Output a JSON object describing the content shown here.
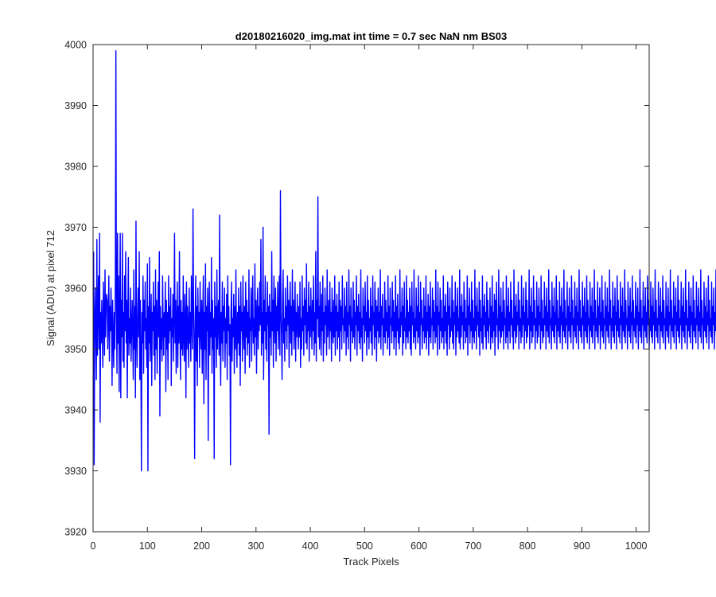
{
  "chart_data": {
    "type": "line",
    "title": "d20180216020_img.mat int time = 0.7 sec  NaN nm BS03",
    "xlabel": "Track Pixels",
    "ylabel": "Signal (ADU) at pixel 712",
    "xlim": [
      0,
      1024
    ],
    "ylim": [
      3920,
      4000
    ],
    "xticks": [
      0,
      100,
      200,
      300,
      400,
      500,
      600,
      700,
      800,
      900,
      1000
    ],
    "yticks": [
      3920,
      3930,
      3940,
      3950,
      3960,
      3970,
      3980,
      3990,
      4000
    ],
    "grid": false,
    "box": true,
    "series": [
      {
        "color": "#0000ff",
        "x_start": 1,
        "x_step": 1,
        "y": [
          3966,
          3931,
          3954,
          3960,
          3952,
          3945,
          3968,
          3949,
          3957,
          3962,
          3950,
          3969,
          3938,
          3956,
          3951,
          3958,
          3953,
          3947,
          3961,
          3955,
          3949,
          3963,
          3952,
          3957,
          3959,
          3958,
          3950,
          3955,
          3962,
          3948,
          3957,
          3953,
          3960,
          3954,
          3944,
          3958,
          3952,
          3947,
          3956,
          3950,
          3961,
          3999,
          3956,
          3946,
          3969,
          3951,
          3962,
          3943,
          3955,
          3969,
          3942,
          3958,
          3952,
          3969,
          3948,
          3956,
          3947,
          3962,
          3953,
          3966,
          3951,
          3958,
          3942,
          3956,
          3965,
          3949,
          3955,
          3951,
          3960,
          3948,
          3953,
          3958,
          3952,
          3945,
          3963,
          3950,
          3957,
          3942,
          3971,
          3953,
          3947,
          3955,
          3960,
          3952,
          3966,
          3945,
          3958,
          3949,
          3930,
          3956,
          3951,
          3962,
          3946,
          3958,
          3953,
          3961,
          3950,
          3955,
          3947,
          3964,
          3930,
          3957,
          3951,
          3965,
          3948,
          3952,
          3959,
          3944,
          3956,
          3953,
          3961,
          3949,
          3957,
          3945,
          3963,
          3950,
          3958,
          3946,
          3954,
          3961,
          3952,
          3966,
          3939,
          3957,
          3950,
          3955,
          3948,
          3962,
          3954,
          3949,
          3956,
          3952,
          3961,
          3943,
          3958,
          3950,
          3956,
          3945,
          3962,
          3951,
          3957,
          3953,
          3960,
          3944,
          3955,
          3952,
          3959,
          3948,
          3956,
          3969,
          3951,
          3958,
          3946,
          3954,
          3961,
          3947,
          3957,
          3951,
          3966,
          3953,
          3945,
          3958,
          3950,
          3956,
          3949,
          3962,
          3952,
          3948,
          3959,
          3955,
          3942,
          3961,
          3950,
          3957,
          3953,
          3947,
          3960,
          3951,
          3956,
          3948,
          3962,
          3954,
          3950,
          3973,
          3957,
          3951,
          3932,
          3955,
          3962,
          3948,
          3957,
          3944,
          3960,
          3952,
          3956,
          3947,
          3961,
          3953,
          3950,
          3958,
          3946,
          3955,
          3962,
          3941,
          3956,
          3950,
          3964,
          3945,
          3957,
          3953,
          3960,
          3935,
          3954,
          3961,
          3949,
          3956,
          3952,
          3965,
          3946,
          3958,
          3950,
          3955,
          3932,
          3961,
          3952,
          3957,
          3947,
          3963,
          3950,
          3955,
          3958,
          3949,
          3972,
          3953,
          3944,
          3956,
          3951,
          3961,
          3948,
          3957,
          3953,
          3960,
          3947,
          3955,
          3951,
          3959,
          3945,
          3962,
          3953,
          3957,
          3949,
          3954,
          3931,
          3956,
          3961,
          3948,
          3955,
          3952,
          3959,
          3946,
          3957,
          3950,
          3963,
          3952,
          3947,
          3956,
          3951,
          3960,
          3949,
          3957,
          3944,
          3961,
          3953,
          3956,
          3948,
          3962,
          3954,
          3950,
          3957,
          3946,
          3961,
          3952,
          3958,
          3949,
          3956,
          3951,
          3963,
          3947,
          3955,
          3953,
          3960,
          3948,
          3957,
          3962,
          3951,
          3955,
          3949,
          3964,
          3952,
          3958,
          3946,
          3956,
          3960,
          3950,
          3957,
          3953,
          3961,
          3954,
          3968,
          3949,
          3956,
          3951,
          3970,
          3945,
          3958,
          3953,
          3962,
          3950,
          3956,
          3948,
          3961,
          3954,
          3957,
          3936,
          3959,
          3952,
          3956,
          3949,
          3966,
          3953,
          3958,
          3947,
          3962,
          3955,
          3951,
          3960,
          3948,
          3957,
          3953,
          3961,
          3950,
          3955,
          3962,
          3949,
          3976,
          3956,
          3952,
          3945,
          3958,
          3963,
          3951,
          3955,
          3948,
          3960,
          3953,
          3957,
          3950,
          3962,
          3954,
          3958,
          3947,
          3956,
          3961,
          3951,
          3957,
          3949,
          3963,
          3953,
          3958,
          3950,
          3955,
          3961,
          3948,
          3956,
          3952,
          3959,
          3954,
          3950,
          3957,
          3952,
          3961,
          3947,
          3955,
          3950,
          3962,
          3953,
          3957,
          3949,
          3960,
          3954,
          3958,
          3951,
          3964,
          3950,
          3956,
          3953,
          3961,
          3948,
          3957,
          3952,
          3960,
          3955,
          3950,
          3958,
          3953,
          3962,
          3949,
          3956,
          3951,
          3966,
          3948,
          3958,
          3955,
          3975,
          3952,
          3957,
          3950,
          3961,
          3954,
          3949,
          3959,
          3953,
          3962,
          3948,
          3956,
          3951,
          3960,
          3954,
          3957,
          3949,
          3963,
          3952,
          3955,
          3958,
          3950,
          3961,
          3953,
          3956,
          3948,
          3960,
          3954,
          3951,
          3958,
          3952,
          3962,
          3949,
          3957,
          3953,
          3959,
          3950,
          3956,
          3952,
          3961,
          3948,
          3958,
          3953,
          3957,
          3950,
          3962,
          3954,
          3955,
          3951,
          3960,
          3953,
          3957,
          3949,
          3961,
          3952,
          3956,
          3950,
          3963,
          3954,
          3957,
          3948,
          3960,
          3953,
          3955,
          3951,
          3961,
          3952,
          3958,
          3950,
          3956,
          3954,
          3962,
          3949,
          3957,
          3953,
          3959,
          3951,
          3956,
          3950,
          3963,
          3952,
          3955,
          3948,
          3960,
          3954,
          3957,
          3951,
          3961,
          3953,
          3956,
          3949,
          3962,
          3952,
          3958,
          3950,
          3955,
          3953,
          3960,
          3951,
          3957,
          3949,
          3962,
          3954,
          3956,
          3950,
          3961,
          3952,
          3958,
          3948,
          3957,
          3953,
          3960,
          3951,
          3956,
          3952,
          3963,
          3950,
          3957,
          3954,
          3959,
          3949,
          3955,
          3952,
          3961,
          3951,
          3958,
          3953,
          3956,
          3950,
          3962,
          3952,
          3957,
          3949,
          3960,
          3954,
          3955,
          3951,
          3961,
          3953,
          3958,
          3950,
          3956,
          3952,
          3962,
          3949,
          3957,
          3953,
          3959,
          3951,
          3955,
          3950,
          3963,
          3952,
          3956,
          3954,
          3960,
          3949,
          3957,
          3951,
          3961,
          3953,
          3955,
          3950,
          3962,
          3952,
          3958,
          3951,
          3956,
          3953,
          3960,
          3950,
          3957,
          3949,
          3961,
          3954,
          3956,
          3951,
          3963,
          3952,
          3955,
          3950,
          3960,
          3953,
          3957,
          3951,
          3962,
          3952,
          3956,
          3949,
          3961,
          3954,
          3958,
          3950,
          3955,
          3953,
          3960,
          3951,
          3957,
          3952,
          3962,
          3950,
          3956,
          3953,
          3959,
          3949,
          3957,
          3952,
          3961,
          3951,
          3955,
          3954,
          3960,
          3950,
          3958,
          3953,
          3956,
          3951,
          3963,
          3952,
          3957,
          3949,
          3961,
          3954,
          3956,
          3950,
          3960,
          3953,
          3958,
          3951,
          3955,
          3952,
          3962,
          3950,
          3957,
          3953,
          3959,
          3951,
          3956,
          3949,
          3961,
          3954,
          3957,
          3950,
          3960,
          3952,
          3955,
          3953,
          3962,
          3951,
          3958,
          3950,
          3956,
          3954,
          3961,
          3949,
          3957,
          3952,
          3960,
          3953,
          3955,
          3951,
          3963,
          3950,
          3957,
          3952,
          3959,
          3954,
          3956,
          3950,
          3961,
          3953,
          3958,
          3951,
          3955,
          3952,
          3962,
          3949,
          3957,
          3954,
          3960,
          3951,
          3956,
          3953,
          3961,
          3950,
          3958,
          3952,
          3955,
          3951,
          3963,
          3953,
          3957,
          3950,
          3960,
          3954,
          3956,
          3952,
          3961,
          3949,
          3958,
          3953,
          3955,
          3951,
          3962,
          3950,
          3957,
          3954,
          3959,
          3952,
          3956,
          3950,
          3961,
          3953,
          3958,
          3951,
          3955,
          3954,
          3960,
          3950,
          3957,
          3952,
          3962,
          3951,
          3956,
          3953,
          3959,
          3949,
          3958,
          3952,
          3961,
          3954,
          3955,
          3950,
          3963,
          3953,
          3957,
          3951,
          3960,
          3952,
          3956,
          3953,
          3961,
          3950,
          3958,
          3954,
          3955,
          3951,
          3962,
          3952,
          3957,
          3950,
          3960,
          3953,
          3956,
          3951,
          3961,
          3954,
          3958,
          3952,
          3955,
          3950,
          3963,
          3953,
          3957,
          3951,
          3959,
          3952,
          3956,
          3954,
          3961,
          3950,
          3958,
          3953,
          3955,
          3951,
          3962,
          3952,
          3957,
          3954,
          3960,
          3950,
          3956,
          3953,
          3961,
          3951,
          3958,
          3952,
          3955,
          3954,
          3963,
          3950,
          3957,
          3953,
          3960,
          3951,
          3956,
          3952,
          3962,
          3954,
          3958,
          3950,
          3955,
          3953,
          3961,
          3951,
          3957,
          3952,
          3960,
          3954,
          3956,
          3950,
          3962,
          3953,
          3958,
          3951,
          3955,
          3952,
          3961,
          3954,
          3957,
          3950,
          3960,
          3953,
          3956,
          3952,
          3963,
          3951,
          3958,
          3954,
          3955,
          3950,
          3961,
          3953,
          3957,
          3952,
          3960,
          3951,
          3956,
          3954,
          3962,
          3950,
          3958,
          3953,
          3955,
          3952,
          3961,
          3951,
          3957,
          3954,
          3960,
          3950,
          3956,
          3953,
          3963,
          3952,
          3958,
          3951,
          3955,
          3954,
          3961,
          3950,
          3957,
          3953,
          3960,
          3952,
          3956,
          3951,
          3962,
          3954,
          3958,
          3950,
          3955,
          3953,
          3961,
          3952,
          3957,
          3951,
          3960,
          3954,
          3956,
          3950,
          3963,
          3953,
          3958,
          3952,
          3955,
          3951,
          3961,
          3954,
          3957,
          3950,
          3960,
          3953,
          3956,
          3952,
          3962,
          3951,
          3958,
          3954,
          3955,
          3950,
          3961,
          3953,
          3957,
          3952,
          3960,
          3951,
          3956,
          3954,
          3963,
          3950,
          3958,
          3953,
          3955,
          3952,
          3961,
          3951,
          3957,
          3954,
          3960,
          3950,
          3956,
          3953,
          3962,
          3952,
          3958,
          3951,
          3955,
          3954,
          3961,
          3950,
          3957,
          3953,
          3960,
          3952,
          3956,
          3951,
          3963,
          3954,
          3958,
          3950,
          3955,
          3953,
          3961,
          3952,
          3957,
          3951,
          3960,
          3954,
          3956,
          3950,
          3962,
          3953,
          3958,
          3952,
          3955,
          3951,
          3961,
          3954,
          3957,
          3950,
          3960,
          3953,
          3956,
          3952,
          3963,
          3951,
          3958,
          3954,
          3955,
          3950,
          3961,
          3953,
          3957,
          3952,
          3960,
          3951,
          3956,
          3954,
          3962,
          3950,
          3958,
          3953,
          3955,
          3952,
          3961,
          3951,
          3957,
          3954,
          3960,
          3950,
          3956,
          3953,
          3963,
          3952,
          3958,
          3951,
          3955,
          3954,
          3961,
          3950,
          3957,
          3953,
          3960,
          3952,
          3956,
          3951,
          3962,
          3954,
          3958,
          3950,
          3955,
          3953,
          3961,
          3952,
          3957,
          3951,
          3960,
          3954,
          3956,
          3950,
          3963,
          3953,
          3958,
          3952,
          3955,
          3951,
          3961,
          3954,
          3957,
          3950,
          3960,
          3953,
          3956,
          3952,
          3962,
          3951,
          3958,
          3954,
          3955,
          3950,
          3961,
          3953,
          3957,
          3952,
          3960,
          3951,
          3956,
          3954,
          3963,
          3950,
          3958,
          3953,
          3955,
          3952,
          3961,
          3951,
          3957,
          3954,
          3960,
          3950,
          3956,
          3953,
          3962,
          3952,
          3958,
          3951,
          3955,
          3954,
          3961,
          3950,
          3957,
          3953,
          3960,
          3952,
          3956,
          3951,
          3963,
          3954,
          3958,
          3950,
          3955,
          3953,
          3961,
          3952,
          3957,
          3951,
          3960,
          3954,
          3956,
          3950,
          3962,
          3953,
          3958,
          3952,
          3955,
          3951,
          3961,
          3954,
          3957,
          3950,
          3960,
          3953,
          3956,
          3952,
          3963,
          3951,
          3958,
          3954,
          3955,
          3950,
          3961,
          3953,
          3957,
          3952,
          3960,
          3951,
          3956,
          3954,
          3962,
          3950,
          3958,
          3953,
          3955,
          3952,
          3961,
          3951,
          3957,
          3954,
          3960,
          3950,
          3956,
          3953,
          3963,
          3952,
          3958,
          3951,
          3955,
          3954,
          3961,
          3950,
          3957,
          3953,
          3960,
          3952,
          3956,
          3951,
          3962,
          3954,
          3958,
          3950,
          3955,
          3953,
          3961,
          3952,
          3957,
          3951,
          3960,
          3954,
          3956,
          3950,
          3963
        ]
      }
    ]
  }
}
